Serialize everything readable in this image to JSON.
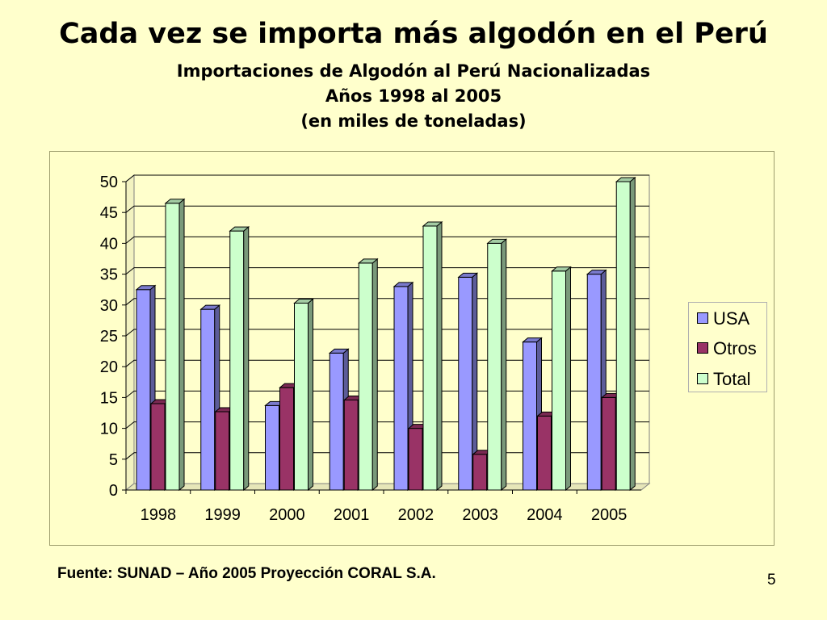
{
  "slide": {
    "title": "Cada vez se importa más algodón en el Perú",
    "subtitle_1": "Importaciones de Algodón al Perú Nacionalizadas",
    "subtitle_2": "Años 1998 al 2005",
    "subtitle_3": "(en miles de toneladas)",
    "source": "Fuente: SUNAD –  Año 2005 Proyección CORAL S.A.",
    "page_number": "5"
  },
  "chart_data": {
    "type": "bar",
    "title": "",
    "xlabel": "",
    "ylabel": "",
    "categories": [
      "1998",
      "1999",
      "2000",
      "2001",
      "2002",
      "2003",
      "2004",
      "2005"
    ],
    "series": [
      {
        "name": "USA",
        "color": "#9999ff",
        "values": [
          32.5,
          29.3,
          13.7,
          22.2,
          33,
          34.5,
          24,
          35
        ]
      },
      {
        "name": "Otros",
        "color": "#993366",
        "values": [
          14,
          12.7,
          16.6,
          14.6,
          10,
          5.8,
          12,
          15
        ]
      },
      {
        "name": "Total",
        "color": "#ccffcc",
        "values": [
          46.5,
          42,
          30.3,
          36.8,
          42.8,
          40,
          35.5,
          50
        ]
      }
    ],
    "ylim": [
      0,
      50
    ],
    "yticks": [
      "0",
      "5",
      "10",
      "15",
      "20",
      "25",
      "30",
      "35",
      "40",
      "45",
      "50"
    ],
    "grid": true,
    "legend_position": "right",
    "style": "3d-clustered-column"
  }
}
